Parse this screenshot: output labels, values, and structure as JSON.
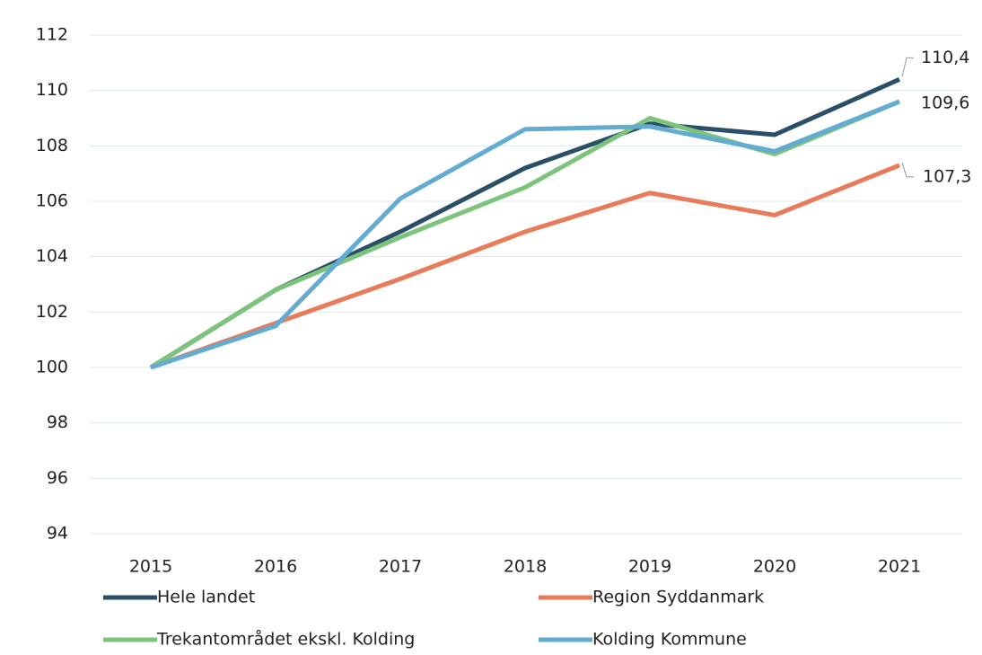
{
  "chart_data": {
    "type": "line",
    "categories": [
      "2015",
      "2016",
      "2017",
      "2018",
      "2019",
      "2020",
      "2021"
    ],
    "series": [
      {
        "name": "Hele landet",
        "color": "#2b4f66",
        "values": [
          100,
          102.8,
          104.9,
          107.2,
          108.8,
          108.4,
          110.4
        ],
        "value_labels": [
          null,
          null,
          null,
          null,
          null,
          null,
          "110,4"
        ]
      },
      {
        "name": "Region Syddanmark",
        "color": "#e97b5b",
        "values": [
          100,
          101.6,
          103.2,
          104.9,
          106.3,
          105.5,
          107.3
        ],
        "value_labels": [
          null,
          null,
          null,
          null,
          null,
          null,
          "107,3"
        ]
      },
      {
        "name": "Trekantområdet ekskl. Kolding",
        "color": "#7cc47b",
        "values": [
          100,
          102.8,
          104.7,
          106.5,
          109.0,
          107.7,
          109.6
        ],
        "value_labels": [
          null,
          null,
          null,
          null,
          null,
          null,
          null
        ]
      },
      {
        "name": "Kolding Kommune",
        "color": "#62abd1",
        "values": [
          100,
          101.5,
          106.1,
          108.6,
          108.7,
          107.8,
          109.6
        ],
        "value_labels": [
          null,
          null,
          null,
          null,
          null,
          null,
          "109,6"
        ]
      }
    ],
    "ylim": [
      94,
      112
    ],
    "yticks": [
      94,
      96,
      98,
      100,
      102,
      104,
      106,
      108,
      110,
      112
    ],
    "grid": true
  }
}
